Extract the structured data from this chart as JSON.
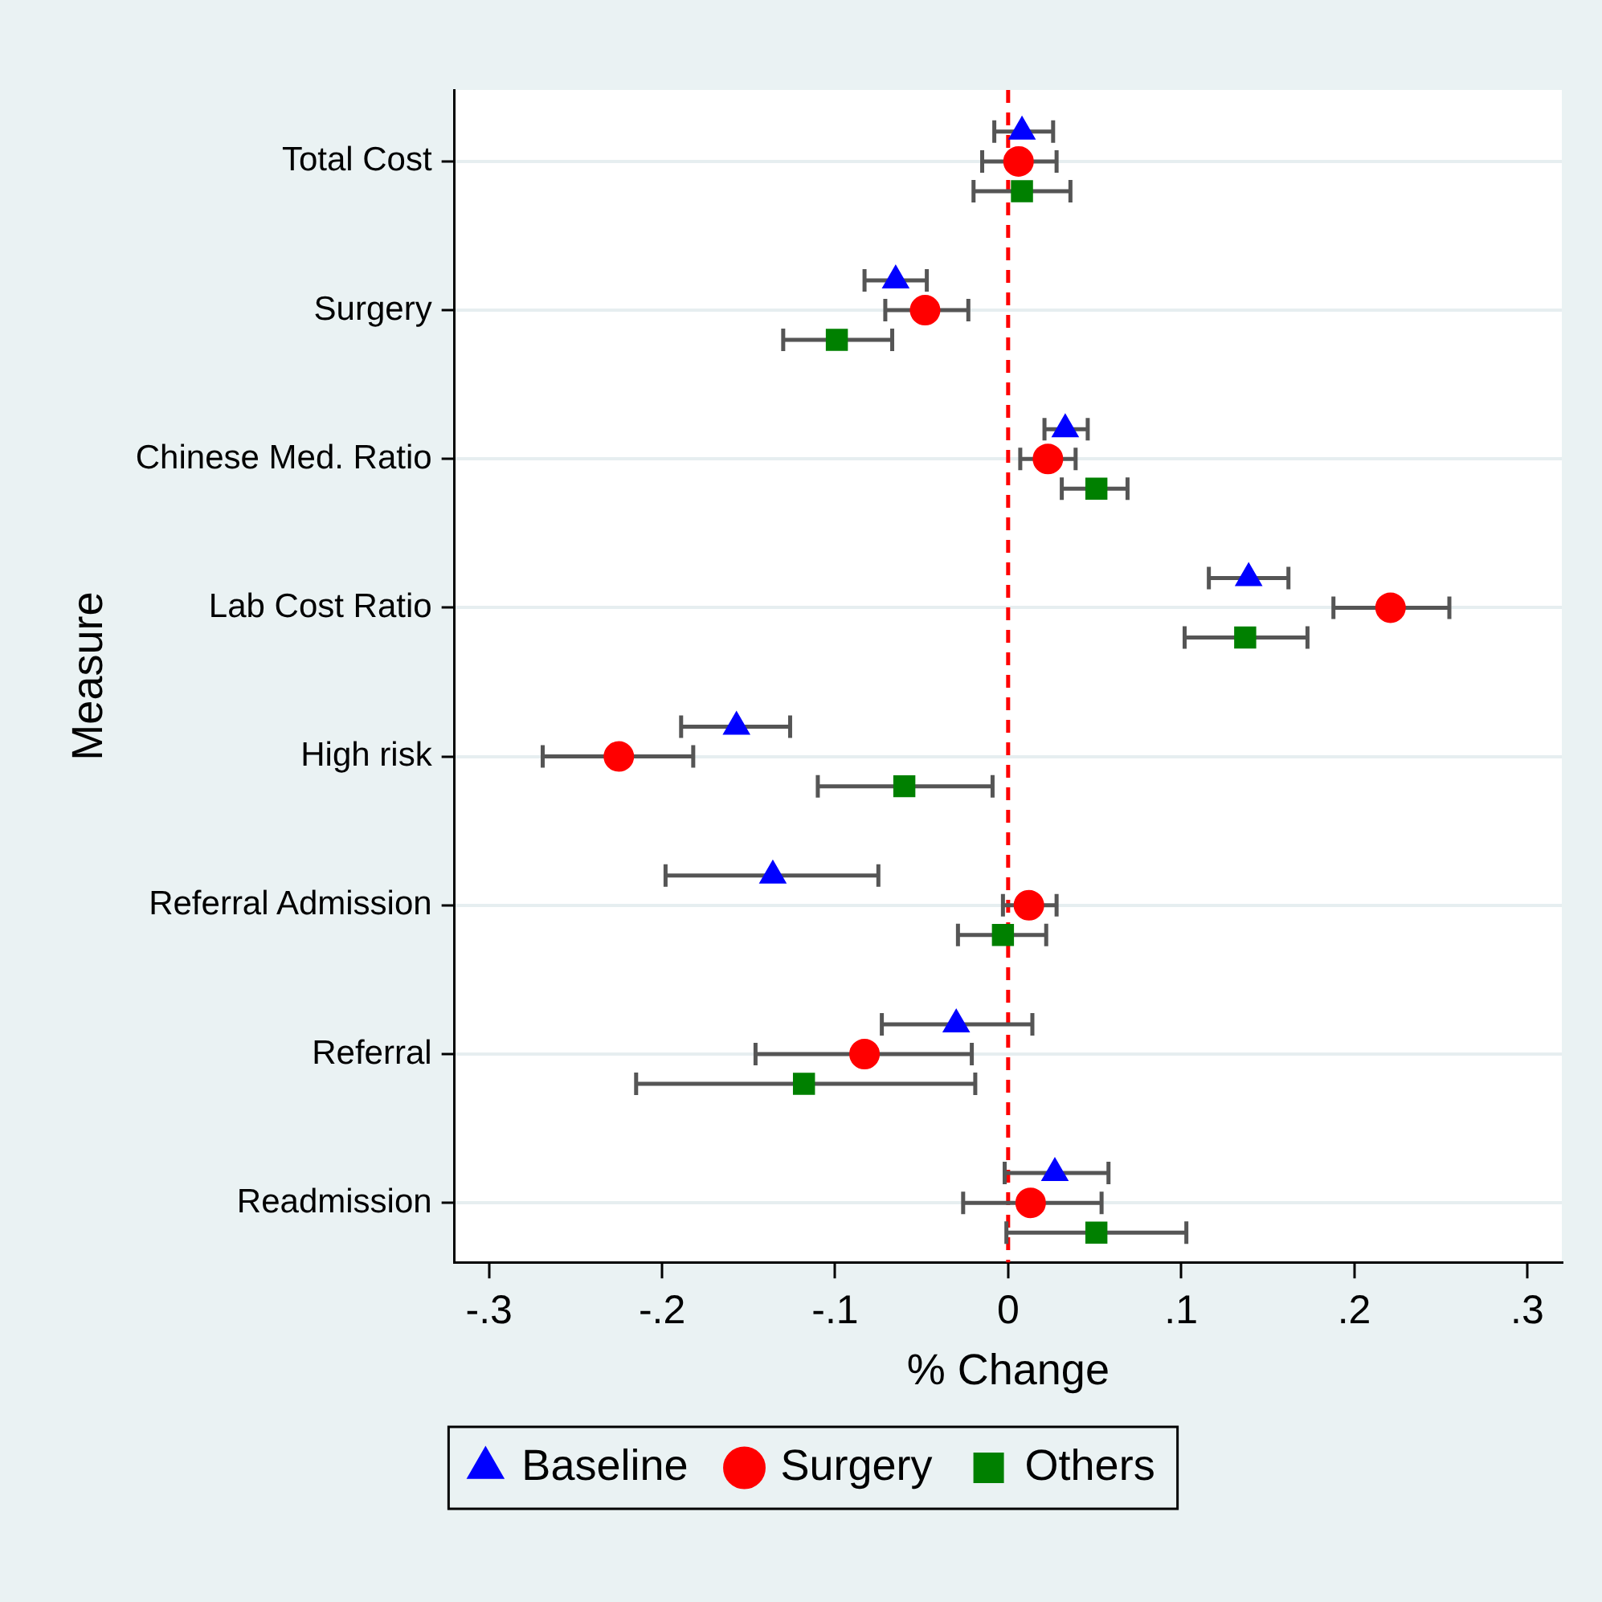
{
  "chart_data": {
    "type": "scatter",
    "orientation": "horizontal",
    "xlabel": "% Change",
    "ylabel": "Measure",
    "categories": [
      "Total Cost",
      "Surgery",
      "Chinese Med. Ratio",
      "Lab Cost Ratio",
      "High risk",
      "Referral Admission",
      "Referral",
      "Readmission"
    ],
    "xlim": [
      -0.32,
      0.32
    ],
    "xticks": [
      {
        "value": -0.3,
        "label": "-.3"
      },
      {
        "value": -0.2,
        "label": "-.2"
      },
      {
        "value": -0.1,
        "label": "-.1"
      },
      0,
      {
        "value": 0.1,
        "label": ".1"
      },
      {
        "value": 0.2,
        "label": ".2"
      },
      {
        "value": 0.3,
        "label": ".3"
      }
    ],
    "series": [
      {
        "name": "Baseline",
        "color": "#0000ff",
        "marker": "triangle",
        "values": [
          0.008,
          -0.065,
          0.033,
          0.139,
          -0.157,
          -0.136,
          -0.03,
          0.027
        ],
        "errors": [
          [
            -0.008,
            0.026
          ],
          [
            -0.083,
            -0.047
          ],
          [
            0.021,
            0.046
          ],
          [
            0.116,
            0.162
          ],
          [
            -0.189,
            -0.126
          ],
          [
            -0.198,
            -0.075
          ],
          [
            -0.073,
            0.014
          ],
          [
            -0.002,
            0.058
          ]
        ]
      },
      {
        "name": "Surgery",
        "color": "#ff0000",
        "marker": "circle",
        "values": [
          0.006,
          -0.048,
          0.023,
          0.221,
          -0.225,
          0.012,
          -0.083,
          0.013
        ],
        "errors": [
          [
            -0.015,
            0.028
          ],
          [
            -0.071,
            -0.023
          ],
          [
            0.007,
            0.039
          ],
          [
            0.188,
            0.255
          ],
          [
            -0.269,
            -0.182
          ],
          [
            -0.003,
            0.028
          ],
          [
            -0.146,
            -0.021
          ],
          [
            -0.026,
            0.054
          ]
        ]
      },
      {
        "name": "Others",
        "color": "#008000",
        "marker": "square",
        "values": [
          0.008,
          -0.099,
          0.051,
          0.137,
          -0.06,
          -0.003,
          -0.118,
          0.051
        ],
        "errors": [
          [
            -0.02,
            0.036
          ],
          [
            -0.13,
            -0.067
          ],
          [
            0.031,
            0.069
          ],
          [
            0.102,
            0.173
          ],
          [
            -0.11,
            -0.009
          ],
          [
            -0.029,
            0.022
          ],
          [
            -0.215,
            -0.019
          ],
          [
            -0.001,
            0.103
          ]
        ]
      }
    ],
    "ref_lines": [
      {
        "axis": "x",
        "value": 0,
        "color": "#ff0000",
        "line_style": "dashed"
      }
    ],
    "grid": "y",
    "legend": "bottom"
  }
}
